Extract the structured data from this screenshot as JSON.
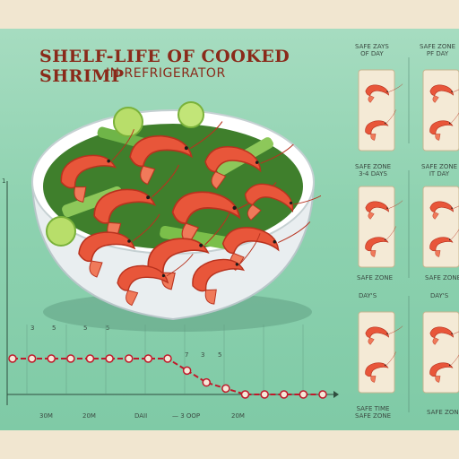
{
  "title": {
    "line1": "SHELF-LIFE OF COOKED SHRIMP",
    "line2": "IN REFRIGERATOR"
  },
  "colors": {
    "background": "#8ed2b0",
    "title": "#8a2a1a",
    "shrimp": "#e8563a",
    "celery": "#4c9a2a",
    "timeline": "#c0182a",
    "paper": "#f1e6d0"
  },
  "chart_data": {
    "type": "line",
    "title": "",
    "xlabel": "",
    "ylabel": "",
    "points_count": 17,
    "y_level": [
      1,
      1,
      1,
      1,
      1,
      1,
      1,
      1,
      1,
      0.9,
      0.8,
      0.75,
      0.7,
      0.7,
      0.7,
      0.7,
      0.7
    ],
    "y_tick_labels": [
      "1"
    ],
    "tick_labels_top": [
      "3",
      "5",
      "5",
      "5",
      "7",
      "3",
      "5"
    ],
    "x_tick_labels": [
      "30M",
      "20M",
      "DAII",
      "— 3 OOP",
      "20M"
    ]
  },
  "side_panels": {
    "labels": [
      "SAFE ZAYS\nOF DAY",
      "SAFE ZONE\nPF DAY",
      "SAFE ZONE\n3-4 DAYS",
      "SAFE ZONE\nIT DAY",
      "SAFE ZONE",
      "SAFE ZONE",
      "DAY'S",
      "DAY'S",
      "SAFE TIME\nSAFE ZONE",
      "SAFE ZONE"
    ]
  }
}
